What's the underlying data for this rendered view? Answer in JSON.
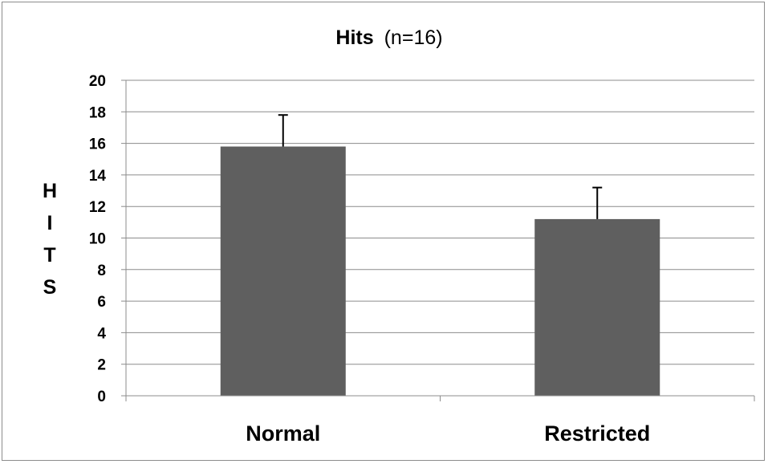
{
  "chart_data": {
    "type": "bar",
    "title": "Hits",
    "subtitle": "(n=16)",
    "ylabel": "HITS",
    "xlabel": "",
    "categories": [
      "Normal",
      "Restricted"
    ],
    "series": [
      {
        "values": [
          15.8,
          11.2
        ],
        "error": [
          2.0,
          2.0
        ]
      }
    ],
    "ylim": [
      0,
      20
    ],
    "yticks": [
      "0",
      "2",
      "4",
      "6",
      "8",
      "10",
      "12",
      "14",
      "16",
      "18",
      "20"
    ],
    "grid": true,
    "legend": "none",
    "bar_color": "#5f5f5f",
    "grid_color": "#8c8c8c"
  }
}
